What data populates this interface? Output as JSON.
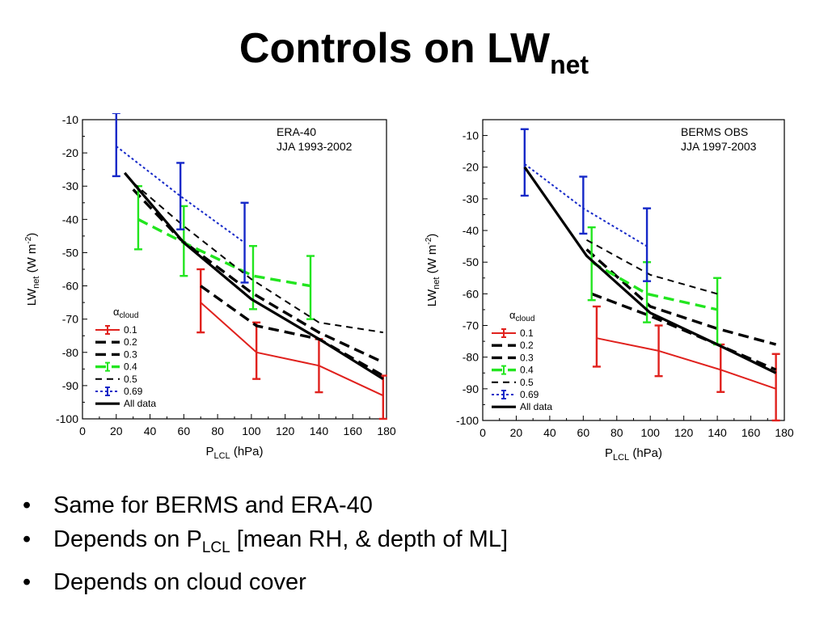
{
  "slide": {
    "title_main": "Controls on LW",
    "title_sub": "net",
    "bullets": {
      "b1": "Same for BERMS and ERA-40",
      "b2_pre": "Depends on P",
      "b2_sub": "LCL",
      "b2_post": " [mean RH, & depth of ML]",
      "b3": "Depends on cloud cover"
    }
  },
  "chart_data": [
    {
      "type": "line",
      "annotation": [
        "ERA-40",
        "JJA 1993-2002"
      ],
      "xlabel": "P",
      "xlabel_sub": "LCL",
      "xlabel_unit": " (hPa)",
      "ylabel": "LW",
      "ylabel_sub": "net",
      "ylabel_unit": " (W m",
      "ylabel_exp": "-2",
      "ylabel_close": ")",
      "xlim": [
        0,
        180
      ],
      "ylim": [
        -100,
        -10
      ],
      "xticks": [
        0,
        20,
        40,
        60,
        80,
        100,
        120,
        140,
        160,
        180
      ],
      "yticks": [
        -10,
        -20,
        -30,
        -40,
        -50,
        -60,
        -70,
        -80,
        -90,
        -100
      ],
      "legend_title": "α",
      "legend_title_sub": "cloud",
      "legend_position": "bottom-left",
      "series": [
        {
          "name": "0.1",
          "color": "#e0211d",
          "style": "solid-thin",
          "errorbars": true,
          "points": [
            {
              "x": 70,
              "y": -65,
              "lo": -74,
              "hi": -55
            },
            {
              "x": 103,
              "y": -80,
              "lo": -88,
              "hi": -71
            },
            {
              "x": 140,
              "y": -84,
              "lo": -92,
              "hi": -76
            },
            {
              "x": 178,
              "y": -93,
              "lo": -100,
              "hi": -87
            }
          ]
        },
        {
          "name": "0.2",
          "color": "#000000",
          "style": "dash-thick",
          "errorbars": false,
          "points": [
            {
              "x": 70,
              "y": -60
            },
            {
              "x": 103,
              "y": -72
            },
            {
              "x": 140,
              "y": -76
            },
            {
              "x": 178,
              "y": -87
            }
          ]
        },
        {
          "name": "0.3",
          "color": "#000000",
          "style": "dash-thick",
          "errorbars": false,
          "points": [
            {
              "x": 30,
              "y": -31
            },
            {
              "x": 58,
              "y": -46
            },
            {
              "x": 100,
              "y": -62
            },
            {
              "x": 140,
              "y": -74
            },
            {
              "x": 178,
              "y": -83
            }
          ]
        },
        {
          "name": "0.4",
          "color": "#22e51f",
          "style": "dash-thick",
          "errorbars": true,
          "points": [
            {
              "x": 33,
              "y": -40,
              "lo": -49,
              "hi": -30
            },
            {
              "x": 60,
              "y": -47,
              "lo": -57,
              "hi": -36
            },
            {
              "x": 101,
              "y": -57,
              "lo": -67,
              "hi": -48
            },
            {
              "x": 135,
              "y": -60,
              "lo": -70,
              "hi": -51
            }
          ]
        },
        {
          "name": "0.5",
          "color": "#000000",
          "style": "dash-thin",
          "errorbars": false,
          "points": [
            {
              "x": 30,
              "y": -29
            },
            {
              "x": 60,
              "y": -42
            },
            {
              "x": 100,
              "y": -58
            },
            {
              "x": 140,
              "y": -71
            },
            {
              "x": 178,
              "y": -74
            }
          ]
        },
        {
          "name": "0.69",
          "color": "#1528c8",
          "style": "dot",
          "errorbars": true,
          "points": [
            {
              "x": 20,
              "y": -18,
              "lo": -27,
              "hi": -8
            },
            {
              "x": 58,
              "y": -33,
              "lo": -43,
              "hi": -23
            },
            {
              "x": 96,
              "y": -47,
              "lo": -59,
              "hi": -35
            }
          ]
        },
        {
          "name": "All data",
          "color": "#000000",
          "style": "solid-thick",
          "errorbars": false,
          "points": [
            {
              "x": 25,
              "y": -26
            },
            {
              "x": 60,
              "y": -47
            },
            {
              "x": 100,
              "y": -64
            },
            {
              "x": 140,
              "y": -76
            },
            {
              "x": 178,
              "y": -88
            }
          ]
        }
      ]
    },
    {
      "type": "line",
      "annotation": [
        "BERMS OBS",
        "JJA 1997-2003"
      ],
      "xlabel": "P",
      "xlabel_sub": "LCL",
      "xlabel_unit": " (hPa)",
      "ylabel": "LW",
      "ylabel_sub": "net",
      "ylabel_unit": " (W m",
      "ylabel_exp": "-2",
      "ylabel_close": ")",
      "xlim": [
        0,
        180
      ],
      "ylim": [
        -100,
        -5
      ],
      "xticks": [
        0,
        20,
        40,
        60,
        80,
        100,
        120,
        140,
        160,
        180
      ],
      "yticks": [
        -10,
        -20,
        -30,
        -40,
        -50,
        -60,
        -70,
        -80,
        -90,
        -100
      ],
      "legend_title": "α",
      "legend_title_sub": "cloud",
      "legend_position": "bottom-left",
      "series": [
        {
          "name": "0.1",
          "color": "#e0211d",
          "style": "solid-thin",
          "errorbars": true,
          "points": [
            {
              "x": 68,
              "y": -74,
              "lo": -83,
              "hi": -64
            },
            {
              "x": 105,
              "y": -78,
              "lo": -86,
              "hi": -70
            },
            {
              "x": 142,
              "y": -84,
              "lo": -91,
              "hi": -76
            },
            {
              "x": 175,
              "y": -90,
              "lo": -100,
              "hi": -79
            }
          ]
        },
        {
          "name": "0.2",
          "color": "#000000",
          "style": "dash-thick",
          "errorbars": false,
          "points": [
            {
              "x": 65,
              "y": -60
            },
            {
              "x": 100,
              "y": -67
            },
            {
              "x": 140,
              "y": -76
            },
            {
              "x": 175,
              "y": -84
            }
          ]
        },
        {
          "name": "0.3",
          "color": "#000000",
          "style": "dash-thick",
          "errorbars": false,
          "points": [
            {
              "x": 62,
              "y": -46
            },
            {
              "x": 100,
              "y": -64
            },
            {
              "x": 140,
              "y": -71
            },
            {
              "x": 175,
              "y": -76
            }
          ]
        },
        {
          "name": "0.4",
          "color": "#22e51f",
          "style": "dash-thick",
          "errorbars": true,
          "points": [
            {
              "x": 65,
              "y": -50,
              "lo": -62,
              "hi": -39
            },
            {
              "x": 98,
              "y": -60,
              "lo": -69,
              "hi": -50
            },
            {
              "x": 140,
              "y": -65,
              "lo": -76,
              "hi": -55
            }
          ]
        },
        {
          "name": "0.5",
          "color": "#000000",
          "style": "dash-thin",
          "errorbars": false,
          "points": [
            {
              "x": 62,
              "y": -43
            },
            {
              "x": 100,
              "y": -54
            },
            {
              "x": 140,
              "y": -60
            }
          ]
        },
        {
          "name": "0.69",
          "color": "#1528c8",
          "style": "dot",
          "errorbars": true,
          "points": [
            {
              "x": 25,
              "y": -19,
              "lo": -29,
              "hi": -8
            },
            {
              "x": 60,
              "y": -33,
              "lo": -41,
              "hi": -23
            },
            {
              "x": 98,
              "y": -45,
              "lo": -56,
              "hi": -33
            }
          ]
        },
        {
          "name": "All data",
          "color": "#000000",
          "style": "solid-thick",
          "errorbars": false,
          "points": [
            {
              "x": 25,
              "y": -20
            },
            {
              "x": 62,
              "y": -48
            },
            {
              "x": 100,
              "y": -66
            },
            {
              "x": 140,
              "y": -76
            },
            {
              "x": 175,
              "y": -85
            }
          ]
        }
      ]
    }
  ]
}
